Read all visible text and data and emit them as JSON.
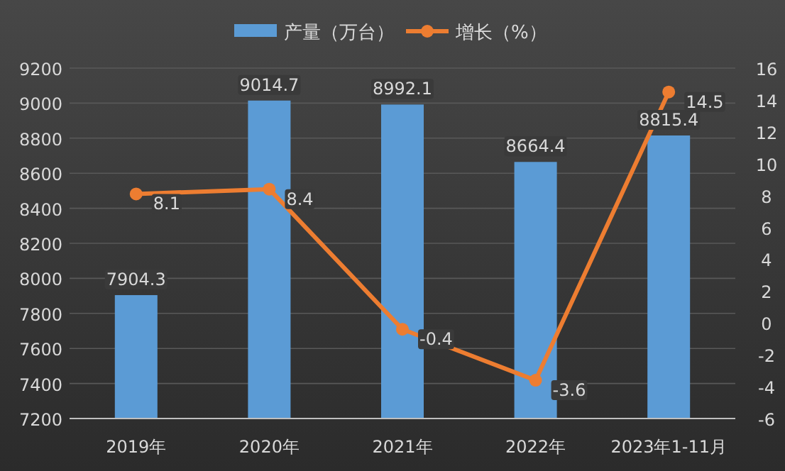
{
  "chart_data": {
    "type": "bar",
    "categories": [
      "2019年",
      "2020年",
      "2021年",
      "2022年",
      "2023年1-11月"
    ],
    "series": [
      {
        "name": "产量（万台）",
        "color": "#5b9bd5",
        "values": [
          7904.3,
          9014.7,
          8992.1,
          8664.4,
          8815.4
        ]
      },
      {
        "name": "增长（%）",
        "type": "line",
        "axis": "y2",
        "color": "#ed7d31",
        "marker": "circle",
        "values": [
          8.1,
          8.4,
          -0.4,
          -3.6,
          14.5
        ]
      }
    ],
    "ylim": [
      7200,
      9200
    ],
    "yticks": [
      7200,
      7400,
      7600,
      7800,
      8000,
      8200,
      8400,
      8600,
      8800,
      9000,
      9200
    ],
    "y2lim": [
      -6,
      16
    ],
    "y2ticks": [
      -6,
      -4,
      -2,
      0,
      2,
      4,
      6,
      8,
      10,
      12,
      14,
      16
    ],
    "grid": "y",
    "legend": "top",
    "data_labels": true
  }
}
